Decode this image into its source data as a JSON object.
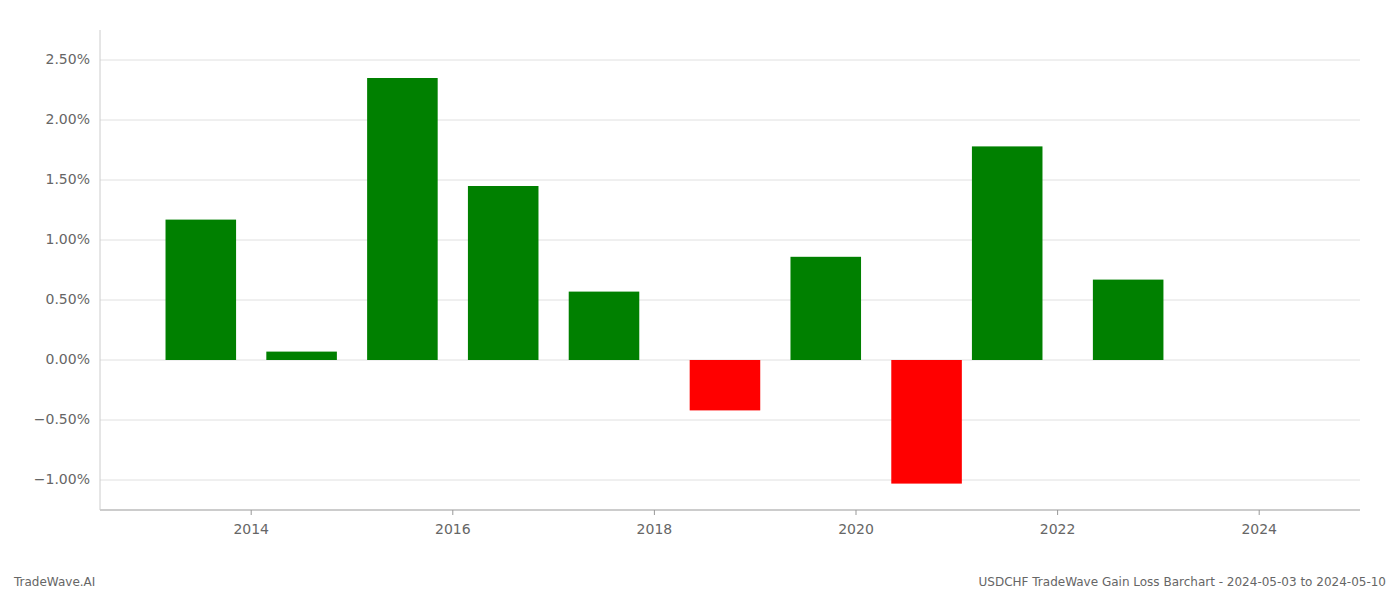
{
  "chart_data": {
    "type": "bar",
    "x": [
      2013.5,
      2014.5,
      2015.5,
      2016.5,
      2017.5,
      2018.7,
      2019.7,
      2020.7,
      2021.5,
      2022.7
    ],
    "values": [
      1.17,
      0.07,
      2.35,
      1.45,
      0.57,
      -0.42,
      0.86,
      -1.03,
      1.78,
      0.67
    ],
    "colors": [
      "#008000",
      "#008000",
      "#008000",
      "#008000",
      "#008000",
      "#ff0000",
      "#008000",
      "#ff0000",
      "#008000",
      "#008000"
    ],
    "xlim": [
      2012.5,
      2025.0
    ],
    "ylim": [
      -1.25,
      2.75
    ],
    "xticks": [
      2014,
      2016,
      2018,
      2020,
      2022,
      2024
    ],
    "yticks": [
      {
        "value": -1.0,
        "label": "−1.00%"
      },
      {
        "value": -0.5,
        "label": "−0.50%"
      },
      {
        "value": 0.0,
        "label": "0.00%"
      },
      {
        "value": 0.5,
        "label": "0.50%"
      },
      {
        "value": 1.0,
        "label": "1.00%"
      },
      {
        "value": 1.5,
        "label": "1.50%"
      },
      {
        "value": 2.0,
        "label": "2.00%"
      },
      {
        "value": 2.5,
        "label": "2.50%"
      }
    ],
    "grid": true,
    "annotations": [
      "TradeWave.AI",
      "USDCHF TradeWave Gain Loss Barchart - 2024-05-03 to 2024-05-10"
    ]
  }
}
